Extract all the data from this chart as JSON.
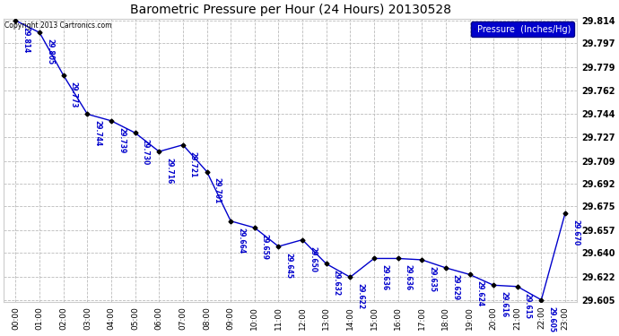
{
  "title": "Barometric Pressure per Hour (24 Hours) 20130528",
  "copyright": "Copyright 2013 Cartronics.com",
  "legend_label": "Pressure  (Inches/Hg)",
  "hour_labels": [
    "00:00",
    "01:00",
    "02:00",
    "03:00",
    "04:00",
    "05:00",
    "06:00",
    "07:00",
    "08:00",
    "09:00",
    "10:00",
    "11:00",
    "12:00",
    "13:00",
    "14:00",
    "15:00",
    "16:00",
    "17:00",
    "18:00",
    "19:00",
    "20:00",
    "21:00",
    "22:00",
    "23:00"
  ],
  "values": [
    29.814,
    29.805,
    29.773,
    29.744,
    29.739,
    29.73,
    29.716,
    29.721,
    29.701,
    29.664,
    29.659,
    29.645,
    29.65,
    29.632,
    29.622,
    29.636,
    29.636,
    29.635,
    29.629,
    29.624,
    29.616,
    29.615,
    29.605,
    29.67
  ],
  "yticks": [
    29.605,
    29.622,
    29.64,
    29.657,
    29.675,
    29.692,
    29.709,
    29.727,
    29.744,
    29.762,
    29.779,
    29.797,
    29.814
  ],
  "ylim_min": 29.6035,
  "ylim_max": 29.8155,
  "line_color": "#0000cc",
  "marker_color": "#000000",
  "grid_color": "#bbbbbb",
  "bg_color": "#ffffff",
  "legend_bg": "#0000cc",
  "legend_text_color": "#ffffff",
  "annotation_color": "#0000cc",
  "title_color": "#000000",
  "copyright_color": "#000000"
}
